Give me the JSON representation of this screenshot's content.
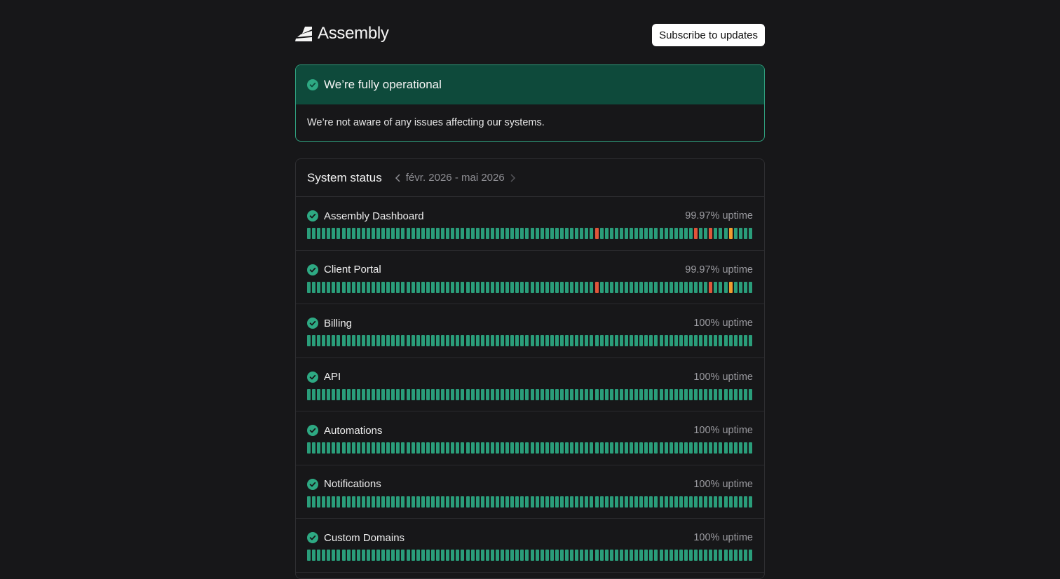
{
  "header": {
    "logo_text": "Assembly",
    "subscribe_label": "Subscribe to updates"
  },
  "banner": {
    "title": "We’re fully operational",
    "message": "We’re not aware of any issues affecting our systems."
  },
  "system_status": {
    "title": "System status",
    "range": "févr. 2026 - mai 2026",
    "bar_count": 90,
    "colors": {
      "ok": "#2a9d7a",
      "outage": "#e0553a",
      "degraded": "#f29d2f"
    },
    "components": [
      {
        "name": "Assembly Dashboard",
        "uptime": "99.97% uptime",
        "outage_days": [
          58,
          78,
          81
        ],
        "degraded_days": [
          85
        ]
      },
      {
        "name": "Client Portal",
        "uptime": "99.97% uptime",
        "outage_days": [
          58,
          81
        ],
        "degraded_days": [
          85
        ]
      },
      {
        "name": "Billing",
        "uptime": "100% uptime",
        "outage_days": [],
        "degraded_days": []
      },
      {
        "name": "API",
        "uptime": "100% uptime",
        "outage_days": [],
        "degraded_days": []
      },
      {
        "name": "Automations",
        "uptime": "100% uptime",
        "outage_days": [],
        "degraded_days": []
      },
      {
        "name": "Notifications",
        "uptime": "100% uptime",
        "outage_days": [],
        "degraded_days": []
      },
      {
        "name": "Custom Domains",
        "uptime": "100% uptime",
        "outage_days": [],
        "degraded_days": []
      }
    ]
  }
}
